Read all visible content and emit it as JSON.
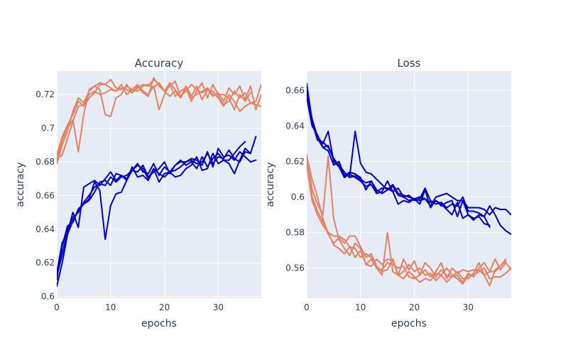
{
  "chart_data": [
    {
      "type": "line",
      "title": "Accuracy",
      "xlabel": "epochs",
      "ylabel": "accuracy",
      "xlim": [
        0,
        38
      ],
      "ylim": [
        0.599,
        0.734
      ],
      "xticks": [
        0,
        10,
        20,
        30
      ],
      "yticks": [
        0.6,
        0.62,
        0.64,
        0.66,
        0.68,
        0.7,
        0.72
      ],
      "ytick_labels": [
        "0.6",
        "0.62",
        "0.64",
        "0.66",
        "0.68",
        "0.7",
        "0.72"
      ],
      "grid": true,
      "series": [
        {
          "color": "#e9805f",
          "values": [
            0.684,
            0.695,
            0.702,
            0.708,
            0.716,
            0.713,
            0.718,
            0.721,
            0.726,
            0.726,
            0.729,
            0.724,
            0.723,
            0.725,
            0.723,
            0.722,
            0.725,
            0.726,
            0.724,
            0.727,
            0.722,
            0.725,
            0.728,
            0.719,
            0.722,
            0.726,
            0.723,
            0.721,
            0.724,
            0.72,
            0.719,
            0.714,
            0.716,
            0.722,
            0.718,
            0.721,
            0.715,
            0.716,
            0.726
          ]
        },
        {
          "color": "#e9805f",
          "values": [
            0.682,
            0.684,
            0.694,
            0.704,
            0.713,
            0.714,
            0.72,
            0.722,
            0.72,
            0.721,
            0.723,
            0.722,
            0.724,
            0.723,
            0.721,
            0.725,
            0.721,
            0.719,
            0.73,
            0.725,
            0.722,
            0.719,
            0.722,
            0.718,
            0.724,
            0.718,
            0.72,
            0.722,
            0.723,
            0.722,
            0.718,
            0.713,
            0.72,
            0.716,
            0.71,
            0.713,
            0.715,
            0.714,
            0.713
          ]
        },
        {
          "color": "#e9805f",
          "values": [
            0.679,
            0.69,
            0.699,
            0.71,
            0.718,
            0.715,
            0.722,
            0.725,
            0.723,
            0.708,
            0.707,
            0.718,
            0.72,
            0.726,
            0.721,
            0.724,
            0.726,
            0.725,
            0.729,
            0.726,
            0.722,
            0.727,
            0.723,
            0.718,
            0.725,
            0.719,
            0.725,
            0.717,
            0.723,
            0.719,
            0.721,
            0.716,
            0.724,
            0.72,
            0.725,
            0.717,
            0.725,
            0.711,
            0.72
          ]
        },
        {
          "color": "#e9805f",
          "values": [
            0.681,
            0.693,
            0.7,
            0.705,
            0.686,
            0.708,
            0.723,
            0.725,
            0.727,
            0.726,
            0.724,
            0.722,
            0.726,
            0.72,
            0.723,
            0.726,
            0.722,
            0.72,
            0.725,
            0.711,
            0.72,
            0.726,
            0.719,
            0.722,
            0.724,
            0.716,
            0.722,
            0.727,
            0.718,
            0.726,
            0.72,
            0.72,
            0.718,
            0.711,
            0.72,
            0.716,
            0.721
          ]
        },
        {
          "color": "#0000cd",
          "values": [
            0.614,
            0.632,
            0.638,
            0.65,
            0.641,
            0.665,
            0.667,
            0.669,
            0.666,
            0.67,
            0.674,
            0.669,
            0.672,
            0.67,
            0.675,
            0.679,
            0.674,
            0.673,
            0.679,
            0.672,
            0.677,
            0.674,
            0.678,
            0.68,
            0.68,
            0.681,
            0.679,
            0.68,
            0.685,
            0.679,
            0.683,
            0.682,
            0.687,
            0.682,
            0.68,
            0.686,
            0.685,
            0.695
          ]
        },
        {
          "color": "#0000cd",
          "values": [
            0.606,
            0.62,
            0.637,
            0.645,
            0.651,
            0.655,
            0.657,
            0.662,
            0.668,
            0.669,
            0.666,
            0.673,
            0.672,
            0.669,
            0.675,
            0.678,
            0.676,
            0.67,
            0.676,
            0.673,
            0.671,
            0.674,
            0.675,
            0.677,
            0.68,
            0.682,
            0.681,
            0.678,
            0.686,
            0.677,
            0.688,
            0.683,
            0.684,
            0.681,
            0.686,
            0.683,
            0.68,
            0.681
          ]
        },
        {
          "color": "#0000cd",
          "values": [
            0.612,
            0.625,
            0.64,
            0.647,
            0.65,
            0.656,
            0.66,
            0.665,
            0.667,
            0.666,
            0.671,
            0.668,
            0.671,
            0.672,
            0.675,
            0.674,
            0.678,
            0.671,
            0.674,
            0.676,
            0.68,
            0.673,
            0.678,
            0.681,
            0.678,
            0.68,
            0.676,
            0.683,
            0.677,
            0.682,
            0.685,
            0.681,
            0.681,
            0.685,
            0.689,
            0.692
          ]
        },
        {
          "color": "#0000cd",
          "values": [
            0.61,
            0.63,
            0.642,
            0.644,
            0.652,
            0.655,
            0.658,
            0.668,
            0.663,
            0.634,
            0.654,
            0.661,
            0.662,
            0.669,
            0.677,
            0.671,
            0.672,
            0.669,
            0.676,
            0.668,
            0.673,
            0.674,
            0.671,
            0.672,
            0.676,
            0.678,
            0.683,
            0.675,
            0.676,
            0.685,
            0.679,
            0.681,
            0.679,
            0.673,
            0.681,
            0.688,
            0.685
          ]
        }
      ]
    },
    {
      "type": "line",
      "title": "Loss",
      "xlabel": "epochs",
      "ylabel": "accuracy",
      "xlim": [
        0,
        38
      ],
      "ylim": [
        0.543,
        0.671
      ],
      "xticks": [
        0,
        10,
        20,
        30
      ],
      "yticks": [
        0.56,
        0.58,
        0.6,
        0.62,
        0.64,
        0.66
      ],
      "ytick_labels": [
        "0.56",
        "0.58",
        "0.6",
        "0.62",
        "0.64",
        "0.66"
      ],
      "grid": true,
      "series": [
        {
          "color": "#0000cd",
          "values": [
            0.664,
            0.643,
            0.633,
            0.628,
            0.626,
            0.618,
            0.62,
            0.612,
            0.614,
            0.613,
            0.611,
            0.604,
            0.609,
            0.603,
            0.605,
            0.605,
            0.603,
            0.605,
            0.6,
            0.598,
            0.599,
            0.598,
            0.599,
            0.597,
            0.598,
            0.595,
            0.597,
            0.598,
            0.589,
            0.598,
            0.59,
            0.588,
            0.589,
            0.585,
            0.584
          ]
        },
        {
          "color": "#0000cd",
          "values": [
            0.66,
            0.644,
            0.634,
            0.63,
            0.637,
            0.62,
            0.617,
            0.613,
            0.612,
            0.637,
            0.619,
            0.614,
            0.613,
            0.61,
            0.607,
            0.604,
            0.607,
            0.602,
            0.601,
            0.6,
            0.599,
            0.6,
            0.599,
            0.595,
            0.6,
            0.601,
            0.602,
            0.6,
            0.598,
            0.598,
            0.594,
            0.594,
            0.594,
            0.593,
            0.59,
            0.594,
            0.593,
            0.593,
            0.59
          ]
        },
        {
          "color": "#0000cd",
          "values": [
            0.658,
            0.642,
            0.632,
            0.631,
            0.628,
            0.622,
            0.617,
            0.611,
            0.613,
            0.611,
            0.609,
            0.606,
            0.607,
            0.602,
            0.603,
            0.609,
            0.603,
            0.596,
            0.598,
            0.597,
            0.599,
            0.596,
            0.604,
            0.594,
            0.598,
            0.596,
            0.593,
            0.59,
            0.597,
            0.588,
            0.59,
            0.587,
            0.59,
            0.589,
            0.583
          ]
        },
        {
          "color": "#0000cd",
          "values": [
            0.656,
            0.64,
            0.635,
            0.628,
            0.629,
            0.621,
            0.618,
            0.614,
            0.611,
            0.612,
            0.61,
            0.608,
            0.609,
            0.604,
            0.602,
            0.604,
            0.606,
            0.601,
            0.6,
            0.601,
            0.598,
            0.599,
            0.605,
            0.598,
            0.596,
            0.597,
            0.594,
            0.596,
            0.595,
            0.6,
            0.592,
            0.592,
            0.591,
            0.589,
            0.595,
            0.59,
            0.584,
            0.581,
            0.579
          ]
        },
        {
          "color": "#e9805f",
          "values": [
            0.624,
            0.604,
            0.596,
            0.59,
            0.623,
            0.588,
            0.576,
            0.571,
            0.567,
            0.574,
            0.571,
            0.562,
            0.565,
            0.56,
            0.556,
            0.58,
            0.558,
            0.556,
            0.565,
            0.559,
            0.564,
            0.556,
            0.563,
            0.56,
            0.555,
            0.559,
            0.556,
            0.555,
            0.556,
            0.552,
            0.557,
            0.555,
            0.56,
            0.563,
            0.558,
            0.565,
            0.559,
            0.563,
            0.559
          ]
        },
        {
          "color": "#e9805f",
          "values": [
            0.622,
            0.6,
            0.592,
            0.586,
            0.58,
            0.578,
            0.578,
            0.576,
            0.572,
            0.566,
            0.57,
            0.562,
            0.561,
            0.565,
            0.562,
            0.565,
            0.564,
            0.556,
            0.558,
            0.562,
            0.558,
            0.56,
            0.556,
            0.557,
            0.553,
            0.556,
            0.56,
            0.556,
            0.554,
            0.551,
            0.556,
            0.556,
            0.558,
            0.56,
            0.554,
            0.555,
            0.555,
            0.557,
            0.56
          ]
        },
        {
          "color": "#e9805f",
          "values": [
            0.618,
            0.598,
            0.59,
            0.584,
            0.58,
            0.573,
            0.571,
            0.568,
            0.572,
            0.571,
            0.566,
            0.568,
            0.566,
            0.56,
            0.559,
            0.563,
            0.562,
            0.56,
            0.561,
            0.555,
            0.554,
            0.556,
            0.559,
            0.555,
            0.558,
            0.563,
            0.554,
            0.56,
            0.557,
            0.559,
            0.558,
            0.559,
            0.559,
            0.556,
            0.55,
            0.559,
            0.561,
            0.565
          ]
        },
        {
          "color": "#e9805f",
          "values": [
            0.623,
            0.61,
            0.6,
            0.588,
            0.579,
            0.574,
            0.577,
            0.574,
            0.578,
            0.578,
            0.572,
            0.566,
            0.568,
            0.561,
            0.558,
            0.559,
            0.565,
            0.556,
            0.554,
            0.558,
            0.555,
            0.552,
            0.554,
            0.553,
            0.557,
            0.556,
            0.552,
            0.555,
            0.558,
            0.554,
            0.554,
            0.557,
            0.563,
            0.556,
            0.558,
            0.558,
            0.561,
            0.564
          ]
        }
      ]
    }
  ]
}
